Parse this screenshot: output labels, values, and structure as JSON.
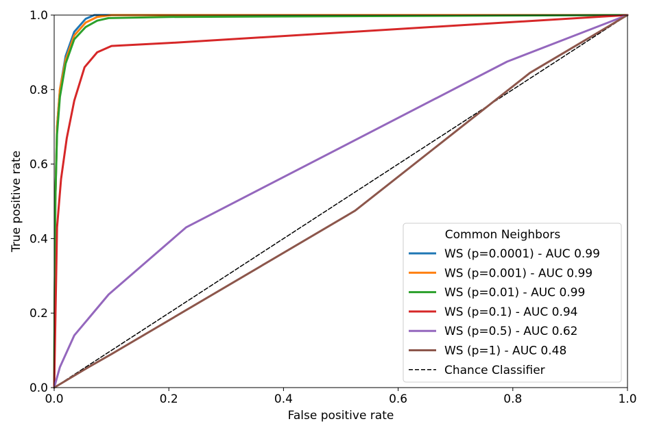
{
  "chart_data": {
    "type": "line",
    "title": "",
    "xlabel": "False positive rate",
    "ylabel": "True positive rate",
    "xlim": [
      0,
      1
    ],
    "ylim": [
      0,
      1
    ],
    "xticks": [
      "0.0",
      "0.2",
      "0.4",
      "0.6",
      "0.8",
      "1.0"
    ],
    "yticks": [
      "0.0",
      "0.2",
      "0.4",
      "0.6",
      "0.8",
      "1.0"
    ],
    "grid": false,
    "legend": {
      "title": "Common Neighbors",
      "position": "lower-right"
    },
    "series": [
      {
        "name": "WS (p=0.0001) - AUC 0.99",
        "color": "#1f77b4",
        "style": "solid",
        "x": [
          0,
          0.002,
          0.005,
          0.01,
          0.02,
          0.035,
          0.055,
          0.07,
          0.1,
          1.0
        ],
        "y": [
          0,
          0.5,
          0.7,
          0.8,
          0.89,
          0.955,
          0.99,
          1.0,
          1.0,
          1.0
        ]
      },
      {
        "name": "WS (p=0.001) - AUC 0.99",
        "color": "#ff7f0e",
        "style": "solid",
        "x": [
          0,
          0.002,
          0.005,
          0.01,
          0.02,
          0.035,
          0.055,
          0.075,
          0.1,
          1.0
        ],
        "y": [
          0,
          0.5,
          0.7,
          0.8,
          0.88,
          0.945,
          0.98,
          0.995,
          1.0,
          1.0
        ]
      },
      {
        "name": "WS (p=0.01) - AUC 0.99",
        "color": "#2ca02c",
        "style": "solid",
        "x": [
          0,
          0.002,
          0.005,
          0.01,
          0.02,
          0.035,
          0.055,
          0.075,
          0.095,
          0.2,
          1.0
        ],
        "y": [
          0,
          0.5,
          0.68,
          0.78,
          0.87,
          0.935,
          0.968,
          0.985,
          0.992,
          0.995,
          1.0
        ]
      },
      {
        "name": "WS (p=0.1) - AUC 0.94",
        "color": "#d62728",
        "style": "solid",
        "x": [
          0,
          0.005,
          0.012,
          0.022,
          0.035,
          0.053,
          0.075,
          0.1,
          0.2,
          1.0
        ],
        "y": [
          0,
          0.43,
          0.56,
          0.67,
          0.77,
          0.86,
          0.9,
          0.917,
          0.925,
          1.0
        ]
      },
      {
        "name": "WS (p=0.5) - AUC 0.62",
        "color": "#9467bd",
        "style": "solid",
        "x": [
          0,
          0.01,
          0.035,
          0.095,
          0.23,
          0.79,
          1.0
        ],
        "y": [
          0,
          0.055,
          0.14,
          0.25,
          0.43,
          0.875,
          1.0
        ]
      },
      {
        "name": "WS (p=1) - AUC 0.48",
        "color": "#8c564b",
        "style": "solid",
        "x": [
          0,
          0.06,
          0.1,
          0.525,
          0.83,
          1.0
        ],
        "y": [
          0,
          0.055,
          0.09,
          0.475,
          0.845,
          1.0
        ]
      },
      {
        "name": "Chance Classifier",
        "color": "#000000",
        "style": "dashed",
        "x": [
          0,
          1
        ],
        "y": [
          0,
          1
        ]
      }
    ]
  }
}
